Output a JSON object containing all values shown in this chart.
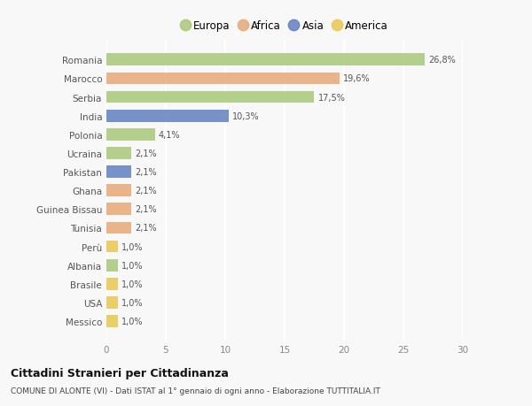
{
  "categories": [
    "Romania",
    "Marocco",
    "Serbia",
    "India",
    "Polonia",
    "Ucraina",
    "Pakistan",
    "Ghana",
    "Guinea Bissau",
    "Tunisia",
    "Perù",
    "Albania",
    "Brasile",
    "USA",
    "Messico"
  ],
  "values": [
    26.8,
    19.6,
    17.5,
    10.3,
    4.1,
    2.1,
    2.1,
    2.1,
    2.1,
    2.1,
    1.0,
    1.0,
    1.0,
    1.0,
    1.0
  ],
  "labels": [
    "26,8%",
    "19,6%",
    "17,5%",
    "10,3%",
    "4,1%",
    "2,1%",
    "2,1%",
    "2,1%",
    "2,1%",
    "2,1%",
    "1,0%",
    "1,0%",
    "1,0%",
    "1,0%",
    "1,0%"
  ],
  "continents": [
    "Europa",
    "Africa",
    "Europa",
    "Asia",
    "Europa",
    "Europa",
    "Asia",
    "Africa",
    "Africa",
    "Africa",
    "America",
    "Europa",
    "America",
    "America",
    "America"
  ],
  "colors": {
    "Europa": "#a8c878",
    "Africa": "#e8a878",
    "Asia": "#6080c0",
    "America": "#e8c850"
  },
  "legend_order": [
    "Europa",
    "Africa",
    "Asia",
    "America"
  ],
  "xlim": [
    0,
    30
  ],
  "xticks": [
    0,
    5,
    10,
    15,
    20,
    25,
    30
  ],
  "title": "Cittadini Stranieri per Cittadinanza",
  "subtitle": "COMUNE DI ALONTE (VI) - Dati ISTAT al 1° gennaio di ogni anno - Elaborazione TUTTITALIA.IT",
  "bg_color": "#f8f8f8",
  "grid_color": "#ffffff",
  "bar_height": 0.65
}
